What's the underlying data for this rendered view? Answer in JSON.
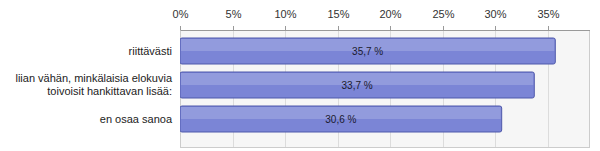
{
  "chart_data": {
    "type": "bar",
    "orientation": "horizontal",
    "categories": [
      "riittävästi",
      "liian vähän, minkälaisia elokuvia toivoisit hankittavan lisää:",
      "en osaa sanoa"
    ],
    "values": [
      35.7,
      33.7,
      30.6
    ],
    "value_labels": [
      "35,7 %",
      "33,7 %",
      "30,6 %"
    ],
    "color": "#7b85d6",
    "xlim": [
      0,
      39
    ],
    "xticks": [
      {
        "value": 0,
        "label": "0%"
      },
      {
        "value": 5,
        "label": "5%"
      },
      {
        "value": 10,
        "label": "10%"
      },
      {
        "value": 15,
        "label": "15%"
      },
      {
        "value": 20,
        "label": "20%"
      },
      {
        "value": 25,
        "label": "25%"
      },
      {
        "value": 30,
        "label": "30%"
      },
      {
        "value": 35,
        "label": "35%"
      }
    ],
    "grid": true,
    "data_labels": true
  }
}
